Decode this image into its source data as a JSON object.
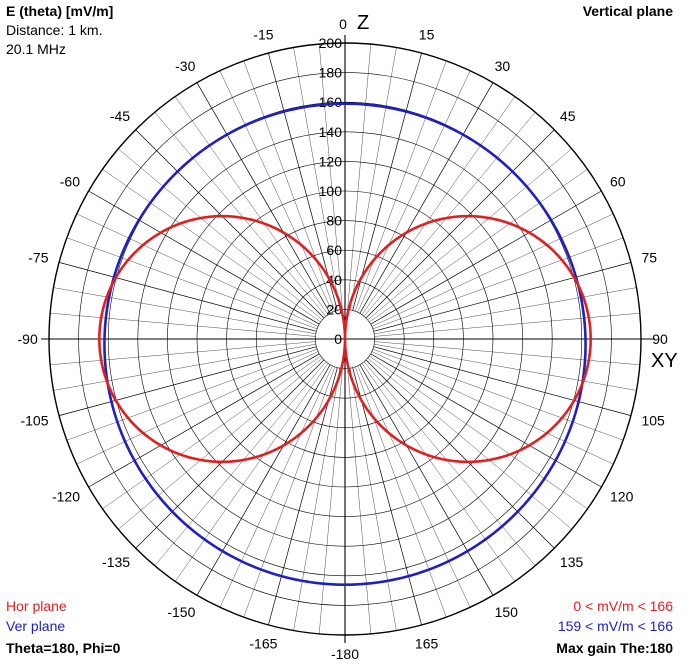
{
  "header": {
    "title": "E (theta) [mV/m]",
    "distance": "Distance: 1 km.",
    "frequency": "20.1 MHz",
    "plane": "Vertical plane"
  },
  "footer": {
    "hor_label": "Hor plane",
    "ver_label": "Ver plane",
    "angles": "Theta=180, Phi=0",
    "hor_range": "0 < mV/m < 166",
    "ver_range": "159 < mV/m < 166",
    "max_gain": "Max gain The:180"
  },
  "axis_labels": {
    "top": "Z",
    "right": "XY"
  },
  "colors": {
    "hor": "#e02020",
    "ver": "#2020c0",
    "grid": "#000000"
  },
  "chart_data": {
    "type": "polar",
    "radial_ticks": [
      "0",
      "20",
      "40",
      "60",
      "80",
      "100",
      "120",
      "140",
      "160",
      "180",
      "200"
    ],
    "radial_range": [
      0,
      200
    ],
    "angle_ticks": [
      "0",
      "15",
      "30",
      "45",
      "60",
      "75",
      "90",
      "105",
      "120",
      "135",
      "150",
      "165",
      "-180",
      "-165",
      "-150",
      "-135",
      "-120",
      "-105",
      "-90",
      "-75",
      "-60",
      "-45",
      "-30",
      "-15"
    ],
    "series": [
      {
        "name": "Hor plane",
        "shape": "figure-eight",
        "max_value": 166,
        "max_at_deg": [
          90,
          -90
        ],
        "min_value": 0,
        "min_at_deg": [
          0,
          180
        ]
      },
      {
        "name": "Ver plane",
        "shape": "near-circle",
        "max_value": 166,
        "min_value": 159,
        "max_at_deg": 180
      }
    ]
  }
}
